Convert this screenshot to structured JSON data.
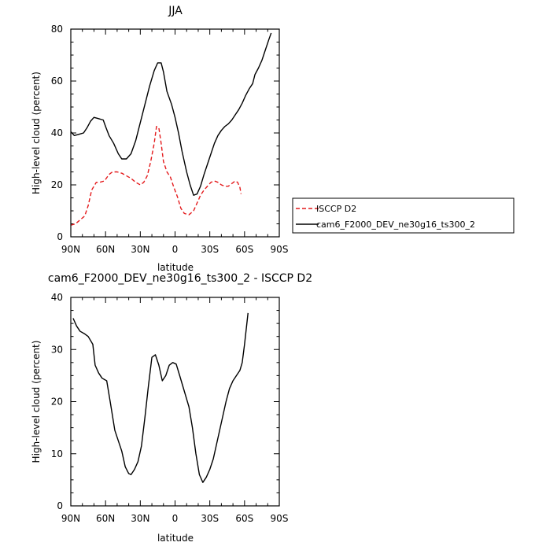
{
  "chart_data": [
    {
      "type": "line",
      "title": "JJA",
      "xlabel": "latitude",
      "ylabel": "High-level cloud (percent)",
      "xlim": [
        90,
        -90
      ],
      "ylim": [
        0,
        80
      ],
      "x_ticks": [
        90,
        60,
        30,
        0,
        -30,
        -60,
        -90
      ],
      "x_tick_labels": [
        "90N",
        "60N",
        "30N",
        "0",
        "30S",
        "60S",
        "90S"
      ],
      "y_ticks": [
        0,
        20,
        40,
        60,
        80
      ],
      "y_tick_labels": [
        "0",
        "20",
        "40",
        "60",
        "80"
      ],
      "legend": {
        "placement": "right",
        "entries": [
          "ISCCP D2",
          "cam6_F2000_DEV_ne30g16_ts300_2"
        ]
      },
      "series": [
        {
          "name": "ISCCP D2",
          "color": "#e41a1c",
          "dash": true,
          "points": [
            [
              90,
              4.5
            ],
            [
              86,
              5
            ],
            [
              82,
              6.5
            ],
            [
              78,
              8
            ],
            [
              75,
              12
            ],
            [
              72,
              18
            ],
            [
              68,
              21
            ],
            [
              65,
              21
            ],
            [
              61,
              21.5
            ],
            [
              57,
              24
            ],
            [
              54,
              25
            ],
            [
              50,
              25
            ],
            [
              46,
              24.5
            ],
            [
              42,
              23.5
            ],
            [
              38,
              22.5
            ],
            [
              34,
              21
            ],
            [
              30,
              20
            ],
            [
              27,
              21
            ],
            [
              24,
              23.5
            ],
            [
              21,
              29
            ],
            [
              18,
              36
            ],
            [
              16,
              42.5
            ],
            [
              14,
              42
            ],
            [
              12,
              36
            ],
            [
              10,
              29
            ],
            [
              7,
              25
            ],
            [
              4,
              23
            ],
            [
              1,
              19
            ],
            [
              -2,
              15.5
            ],
            [
              -5,
              11
            ],
            [
              -8,
              9
            ],
            [
              -12,
              8.5
            ],
            [
              -16,
              10
            ],
            [
              -19,
              13
            ],
            [
              -22,
              16
            ],
            [
              -25,
              18
            ],
            [
              -28,
              19.5
            ],
            [
              -31,
              21
            ],
            [
              -34,
              21.5
            ],
            [
              -37,
              21
            ],
            [
              -40,
              20
            ],
            [
              -43,
              19.5
            ],
            [
              -46,
              19.5
            ],
            [
              -49,
              20.5
            ],
            [
              -52,
              21.5
            ],
            [
              -54,
              21
            ],
            [
              -56,
              19
            ],
            [
              -57,
              16.5
            ]
          ]
        },
        {
          "name": "cam6_F2000_DEV_ne30g16_ts300_2",
          "color": "#000000",
          "dash": false,
          "points": [
            [
              90,
              40.5
            ],
            [
              87,
              39
            ],
            [
              83,
              39.5
            ],
            [
              79,
              40
            ],
            [
              76,
              42
            ],
            [
              73,
              44.5
            ],
            [
              70,
              46
            ],
            [
              66,
              45.5
            ],
            [
              62,
              45
            ],
            [
              60,
              42.5
            ],
            [
              57,
              39
            ],
            [
              53,
              36
            ],
            [
              49,
              32
            ],
            [
              46,
              30
            ],
            [
              42,
              30
            ],
            [
              38,
              32
            ],
            [
              34,
              37
            ],
            [
              30,
              44
            ],
            [
              26,
              51
            ],
            [
              22,
              58
            ],
            [
              18,
              64
            ],
            [
              15,
              67
            ],
            [
              12,
              67
            ],
            [
              10,
              63.5
            ],
            [
              7,
              56
            ],
            [
              3,
              51
            ],
            [
              0,
              46
            ],
            [
              -3,
              40
            ],
            [
              -6,
              33
            ],
            [
              -10,
              25
            ],
            [
              -13,
              20
            ],
            [
              -16,
              16
            ],
            [
              -19,
              16.5
            ],
            [
              -22,
              19.5
            ],
            [
              -25,
              24
            ],
            [
              -28,
              28
            ],
            [
              -31,
              32
            ],
            [
              -34,
              36
            ],
            [
              -37,
              39
            ],
            [
              -40,
              41
            ],
            [
              -43,
              42.5
            ],
            [
              -46,
              43.5
            ],
            [
              -49,
              45
            ],
            [
              -52,
              47
            ],
            [
              -55,
              49
            ],
            [
              -58,
              51.5
            ],
            [
              -61,
              54.5
            ],
            [
              -64,
              57
            ],
            [
              -67,
              59
            ],
            [
              -69,
              62.5
            ],
            [
              -72,
              65
            ],
            [
              -75,
              68
            ],
            [
              -78,
              72
            ],
            [
              -81,
              76
            ],
            [
              -83,
              78.5
            ]
          ]
        }
      ]
    },
    {
      "type": "line",
      "title": "cam6_F2000_DEV_ne30g16_ts300_2 - ISCCP D2",
      "xlabel": "latitude",
      "ylabel": "High-level cloud (percent)",
      "xlim": [
        90,
        -90
      ],
      "ylim": [
        0,
        40
      ],
      "x_ticks": [
        90,
        60,
        30,
        0,
        -30,
        -60,
        -90
      ],
      "x_tick_labels": [
        "90N",
        "60N",
        "30N",
        "0",
        "30S",
        "60S",
        "90S"
      ],
      "y_ticks": [
        0,
        10,
        20,
        30,
        40
      ],
      "y_tick_labels": [
        "0",
        "10",
        "20",
        "30",
        "40"
      ],
      "series": [
        {
          "name": "",
          "color": "#000000",
          "dash": false,
          "points": [
            [
              88,
              36
            ],
            [
              85,
              34.5
            ],
            [
              82,
              33.5
            ],
            [
              78,
              33
            ],
            [
              75,
              32.5
            ],
            [
              71,
              31
            ],
            [
              69,
              27
            ],
            [
              66,
              25.5
            ],
            [
              63,
              24.5
            ],
            [
              59,
              24
            ],
            [
              56,
              20
            ],
            [
              52,
              14.5
            ],
            [
              49,
              12.5
            ],
            [
              46,
              10.5
            ],
            [
              43,
              7.5
            ],
            [
              40,
              6.2
            ],
            [
              38,
              6
            ],
            [
              35,
              7
            ],
            [
              32,
              8.5
            ],
            [
              29,
              11.5
            ],
            [
              26,
              17
            ],
            [
              23,
              23
            ],
            [
              20,
              28.5
            ],
            [
              17,
              29
            ],
            [
              14,
              27
            ],
            [
              11,
              24
            ],
            [
              8,
              25
            ],
            [
              5,
              27
            ],
            [
              2,
              27.5
            ],
            [
              -1,
              27.2
            ],
            [
              -4,
              25
            ],
            [
              -8,
              22
            ],
            [
              -12,
              19
            ],
            [
              -15,
              15
            ],
            [
              -18,
              10
            ],
            [
              -21,
              6
            ],
            [
              -24,
              4.5
            ],
            [
              -27,
              5.5
            ],
            [
              -30,
              7
            ],
            [
              -33,
              9
            ],
            [
              -36,
              12
            ],
            [
              -40,
              16
            ],
            [
              -44,
              20
            ],
            [
              -47,
              22.5
            ],
            [
              -50,
              24
            ],
            [
              -53,
              25
            ],
            [
              -56,
              26
            ],
            [
              -58,
              27.5
            ],
            [
              -60,
              31
            ],
            [
              -62,
              35
            ],
            [
              -63,
              37
            ]
          ]
        }
      ]
    }
  ]
}
